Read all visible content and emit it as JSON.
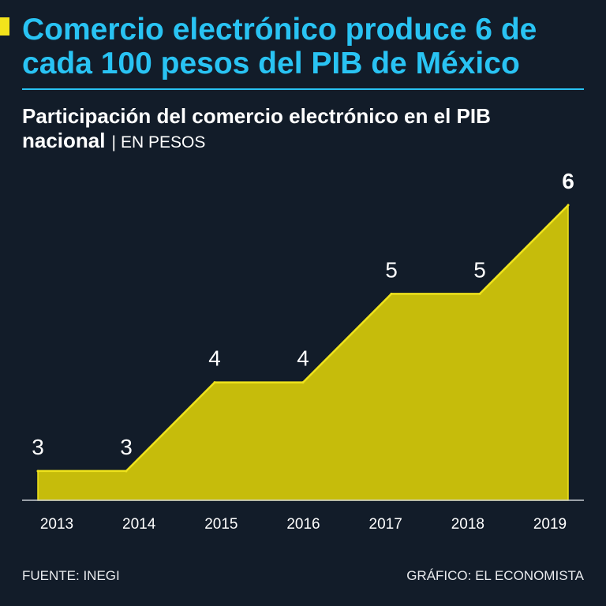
{
  "theme": {
    "background": "#121c29",
    "accent": "#29c3f3",
    "marker": "#f3e31b",
    "text": "#ffffff",
    "footer": "#e9ebee",
    "axis": "#c8ccd2"
  },
  "chart_data": {
    "type": "area",
    "title": "Comercio electrónico produce 6 de cada 100 pesos del PIB de México",
    "subtitle": "Participación del comercio electrónico en el PIB nacional",
    "subtitle_separator": "|",
    "unit": "EN PESOS",
    "xlabel": "",
    "ylabel": "",
    "categories": [
      "2013",
      "2014",
      "2015",
      "2016",
      "2017",
      "2018",
      "2019"
    ],
    "series": [
      {
        "values": [
          3,
          3,
          4,
          4,
          5,
          5,
          6
        ],
        "fill_color": "#c6bc0b",
        "line_color": "#efe31c"
      }
    ],
    "data_labels": true,
    "ylim": [
      2.67,
      6.33
    ],
    "grid": false,
    "legend": "none"
  },
  "footer": {
    "source": "FUENTE: INEGI",
    "credit": "GRÁFICO: EL ECONOMISTA"
  }
}
